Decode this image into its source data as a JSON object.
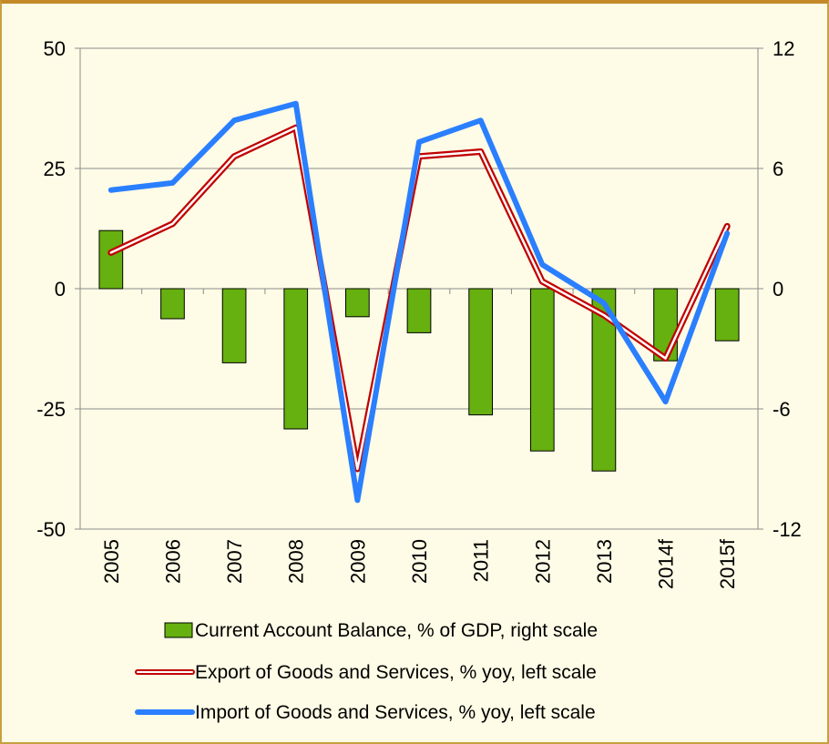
{
  "chart_data": {
    "type": "bar+line",
    "categories": [
      "2005",
      "2006",
      "2007",
      "2008",
      "2009",
      "2010",
      "2011",
      "2012",
      "2013",
      "2014f",
      "2015f"
    ],
    "left_axis": {
      "ylim": [
        -50,
        50
      ],
      "ticks": [
        "50",
        "25",
        "0",
        "-25",
        "-50"
      ]
    },
    "right_axis": {
      "ylim": [
        -12,
        12
      ],
      "ticks": [
        "12",
        "6",
        "0",
        "-6",
        "-12"
      ]
    },
    "series": [
      {
        "name": "Current Account Balance, % of GDP, right scale",
        "type": "bar",
        "axis": "right",
        "color": "#66b010",
        "values": [
          2.9,
          -1.5,
          -3.7,
          -7.0,
          -1.4,
          -2.2,
          -6.3,
          -8.1,
          -9.1,
          -3.6,
          -2.6
        ]
      },
      {
        "name": "Export of Goods and Services, % yoy, left scale",
        "type": "line",
        "axis": "left",
        "color": "#c00000",
        "values": [
          7.5,
          13.5,
          27.5,
          33.5,
          -37.5,
          27.5,
          28.5,
          1.5,
          -5.5,
          -14.5,
          13
        ]
      },
      {
        "name": "Import of Goods and Services, % yoy, left scale",
        "type": "line",
        "axis": "left",
        "color": "#2a7fff",
        "values": [
          20.5,
          22,
          35,
          38.5,
          -44,
          30.5,
          35,
          5,
          -3,
          -23.5,
          11.5
        ]
      }
    ],
    "grid": true,
    "legend_position": "bottom"
  }
}
